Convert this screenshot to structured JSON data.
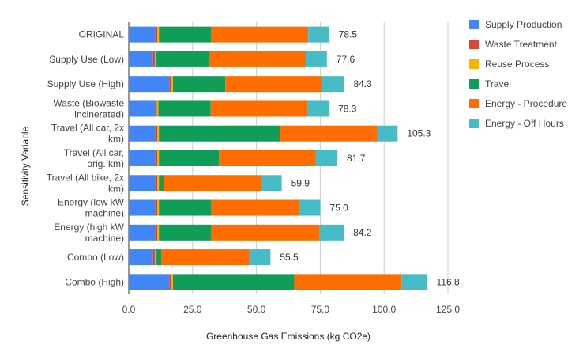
{
  "chart_data": {
    "type": "bar",
    "orientation": "horizontal",
    "stacked": true,
    "xlabel": "Greenhouse Gas Emissions (kg CO2e)",
    "ylabel": "Sensitivity Variable",
    "xlim": [
      0,
      125
    ],
    "xticks": [
      "0.0",
      "25.0",
      "50.0",
      "75.0",
      "100.0",
      "125.0"
    ],
    "grid": true,
    "legend_position": "right",
    "categories": [
      [
        "ORIGINAL"
      ],
      [
        "Supply Use (Low)"
      ],
      [
        "Supply Use (High)"
      ],
      [
        "Waste (Biowaste",
        "incinerated)"
      ],
      [
        "Travel (All car, 2x",
        "km)"
      ],
      [
        "Travel (All car,",
        "orig. km)"
      ],
      [
        "Travel (All bike, 2x",
        "km)"
      ],
      [
        "Energy (low kW",
        "machine)"
      ],
      [
        "Energy (high kW",
        "machine)"
      ],
      [
        "Combo (Low)"
      ],
      [
        "Combo (High)"
      ]
    ],
    "series": [
      {
        "name": "Supply Production",
        "color": "#4285F4",
        "values": [
          10.5,
          9.5,
          16.0,
          10.5,
          10.5,
          10.5,
          10.5,
          10.5,
          10.5,
          9.5,
          16.0
        ]
      },
      {
        "name": "Waste Treatment",
        "color": "#DB4437",
        "values": [
          0.7,
          0.7,
          0.7,
          0.5,
          0.7,
          0.7,
          0.7,
          0.7,
          0.7,
          0.7,
          0.7
        ]
      },
      {
        "name": "Reuse Process",
        "color": "#F4B400",
        "values": [
          0.6,
          0.6,
          0.6,
          0.6,
          0.6,
          0.6,
          0.6,
          0.6,
          0.6,
          0.6,
          0.6
        ]
      },
      {
        "name": "Travel",
        "color": "#0F9D58",
        "values": [
          20.5,
          20.5,
          20.5,
          20.5,
          47.5,
          23.5,
          2.0,
          20.5,
          20.5,
          2.0,
          47.5
        ]
      },
      {
        "name": "Energy - Procedure",
        "color": "#FF6D00",
        "values": [
          38.0,
          38.0,
          38.0,
          38.0,
          38.0,
          38.0,
          38.0,
          34.5,
          42.5,
          34.5,
          42.0
        ]
      },
      {
        "name": "Energy - Off Hours",
        "color": "#46BDC6",
        "values": [
          8.2,
          8.3,
          8.5,
          8.2,
          8.0,
          8.4,
          8.1,
          8.2,
          9.4,
          8.2,
          10.0
        ]
      }
    ],
    "totals": [
      "78.5",
      "77.6",
      "84.3",
      "78.3",
      "105.3",
      "81.7",
      "59.9",
      "75.0",
      "84.2",
      "55.5",
      "116.8"
    ]
  }
}
